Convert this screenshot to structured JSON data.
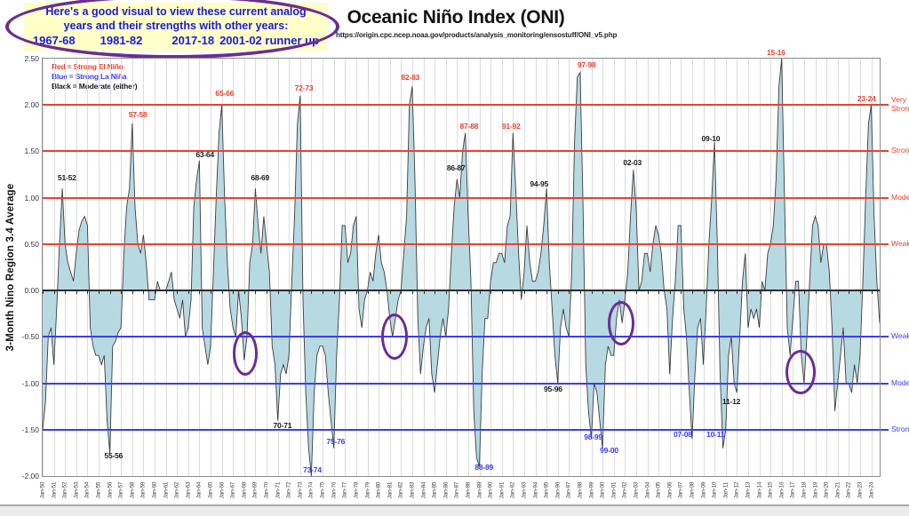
{
  "annotation_bubble": {
    "line1": "Here's a good visual to view these current analog",
    "line2": "years and their strengths with other years:",
    "years": [
      "1967-68",
      "1981-82",
      "2017-18",
      "2001-02 runner up"
    ]
  },
  "header": {
    "title": "Oceanic Niño Index (ONI)",
    "url": "https://origin.cpc.ncep.noaa.gov/products/analysis_monitoring/ensostuff/ONI_v5.php"
  },
  "legend": [
    {
      "text": "Red = Strong  El Niño",
      "color": "#e8422f"
    },
    {
      "text": "Blue = Strong  La Niña",
      "color": "#3a3df0"
    },
    {
      "text": "Black = Moderate  (either)",
      "color": "#1a1a1a"
    }
  ],
  "y_axis": {
    "title": "3-Month Nino Region 3.4 Average",
    "tick_labels": [
      "2.50",
      "2.00",
      "1.50",
      "1.00",
      "0.50",
      "0.00",
      "-0.50",
      "-1.00",
      "-1.50",
      "-2.00"
    ]
  },
  "threshold_lines": [
    {
      "value": 2.0,
      "color": "#e8422f",
      "label": "Very Strong"
    },
    {
      "value": 1.5,
      "color": "#e8422f",
      "label": "Strong"
    },
    {
      "value": 1.0,
      "color": "#e8422f",
      "label": "Moderate"
    },
    {
      "value": 0.5,
      "color": "#e8422f",
      "label": "Weak"
    },
    {
      "value": -0.5,
      "color": "#3a3df0",
      "label": "Weak"
    },
    {
      "value": -1.0,
      "color": "#3a3df0",
      "label": "Moderate"
    },
    {
      "value": -1.5,
      "color": "#3a3df0",
      "label": "Strong"
    }
  ],
  "chart_data": {
    "type": "area",
    "title": "Oceanic Niño Index (ONI)",
    "ylabel": "3-Month Nino Region 3.4 Average",
    "ylim": [
      -2.0,
      2.5
    ],
    "x_start": "Jan-1950",
    "sample_interval_months": 3,
    "fill_color": "#b7d9e2",
    "line_color": "#3d3d3d",
    "x_tick_labels": [
      "Jan-50",
      "Jan-51",
      "Jan-52",
      "Jan-53",
      "Jan-54",
      "Jan-55",
      "Jan-56",
      "Jan-57",
      "Jan-58",
      "Jan-59",
      "Jan-60",
      "Jan-61",
      "Jan-62",
      "Jan-63",
      "Jan-64",
      "Jan-65",
      "Jan-66",
      "Jan-67",
      "Jan-68",
      "Jan-69",
      "Jan-70",
      "Jan-71",
      "Jan-72",
      "Jan-73",
      "Jan-74",
      "Jan-75",
      "Jan-76",
      "Jan-77",
      "Jan-78",
      "Jan-79",
      "Jan-80",
      "Jan-81",
      "Jan-82",
      "Jan-83",
      "Jan-84",
      "Jan-85",
      "Jan-86",
      "Jan-87",
      "Jan-88",
      "Jan-89",
      "Jan-90",
      "Jan-91",
      "Jan-92",
      "Jan-93",
      "Jan-94",
      "Jan-95",
      "Jan-96",
      "Jan-97",
      "Jan-98",
      "Jan-99",
      "Jan-00",
      "Jan-01",
      "Jan-02",
      "Jan-03",
      "Jan-04",
      "Jan-05",
      "Jan-06",
      "Jan-07",
      "Jan-08",
      "Jan-09",
      "Jan-10",
      "Jan-11",
      "Jan-12",
      "Jan-13",
      "Jan-14",
      "Jan-15",
      "Jan-16",
      "Jan-17",
      "Jan-18",
      "Jan-19",
      "Jan-20",
      "Jan-21",
      "Jan-22",
      "Jan-23",
      "Jan-24"
    ],
    "values": [
      -1.5,
      -1.2,
      -0.5,
      -0.4,
      -0.8,
      -0.2,
      0.5,
      1.1,
      0.5,
      0.3,
      0.2,
      0.1,
      0.4,
      0.65,
      0.75,
      0.8,
      0.7,
      -0.4,
      -0.6,
      -0.7,
      -0.7,
      -0.8,
      -0.7,
      -1.4,
      -1.75,
      -0.6,
      -0.55,
      -0.45,
      -0.4,
      0.4,
      0.9,
      1.1,
      1.8,
      0.9,
      0.5,
      0.4,
      0.6,
      0.3,
      -0.1,
      -0.1,
      -0.1,
      0.1,
      0.0,
      0.0,
      0.0,
      0.1,
      0.2,
      -0.1,
      -0.2,
      -0.3,
      -0.1,
      -0.5,
      -0.4,
      -0.1,
      0.9,
      1.2,
      1.4,
      -0.4,
      -0.6,
      -0.8,
      -0.6,
      0.2,
      1.0,
      1.7,
      2.0,
      1.0,
      0.3,
      -0.2,
      -0.4,
      -0.5,
      0.0,
      -0.3,
      -0.75,
      -0.5,
      0.3,
      0.5,
      1.1,
      0.7,
      0.4,
      0.8,
      0.5,
      0.2,
      -0.6,
      -0.8,
      -1.4,
      -0.9,
      -0.8,
      -0.9,
      -0.7,
      0.1,
      0.8,
      1.8,
      2.1,
      -0.1,
      -1.1,
      -1.7,
      -2.0,
      -1.1,
      -0.7,
      -0.6,
      -0.6,
      -0.7,
      -1.1,
      -1.4,
      -1.7,
      -0.7,
      -0.1,
      0.7,
      0.7,
      0.3,
      0.4,
      0.7,
      0.8,
      -0.2,
      -0.4,
      -0.1,
      0.0,
      0.2,
      0.1,
      0.4,
      0.6,
      0.3,
      0.2,
      0.0,
      -0.3,
      -0.5,
      -0.3,
      -0.1,
      0.0,
      0.4,
      0.8,
      2.0,
      2.2,
      1.2,
      -0.3,
      -0.9,
      -0.6,
      -0.4,
      -0.3,
      -0.9,
      -1.1,
      -0.8,
      -0.5,
      -0.3,
      -0.5,
      -0.2,
      0.4,
      0.9,
      1.2,
      1.0,
      1.5,
      1.7,
      0.8,
      0.1,
      -1.3,
      -1.8,
      -1.9,
      -0.9,
      -0.3,
      -0.3,
      0.1,
      0.3,
      0.3,
      0.4,
      0.4,
      0.3,
      0.7,
      0.8,
      1.7,
      1.1,
      0.4,
      -0.1,
      0.2,
      0.7,
      0.3,
      0.1,
      0.1,
      0.2,
      0.4,
      0.7,
      1.1,
      0.3,
      -0.2,
      -0.7,
      -1.0,
      -0.4,
      -0.2,
      -0.4,
      -0.5,
      0.2,
      1.6,
      2.3,
      2.35,
      1.0,
      -0.8,
      -1.3,
      -1.6,
      -1.0,
      -1.1,
      -1.4,
      -1.7,
      -0.8,
      -0.6,
      -0.7,
      -0.7,
      -0.3,
      -0.1,
      -0.35,
      -0.1,
      0.2,
      0.8,
      1.3,
      0.9,
      0.0,
      0.1,
      0.4,
      0.4,
      0.2,
      0.5,
      0.7,
      0.6,
      0.4,
      0.0,
      -0.2,
      -0.9,
      -0.3,
      0.1,
      0.7,
      0.7,
      -0.2,
      -0.5,
      -1.1,
      -1.6,
      -0.9,
      -0.4,
      -0.3,
      -0.8,
      -0.2,
      0.5,
      1.0,
      1.6,
      0.5,
      -0.9,
      -1.7,
      -1.5,
      -0.7,
      -0.5,
      -1.0,
      -1.1,
      -0.5,
      0.1,
      0.4,
      -0.4,
      -0.2,
      -0.3,
      -0.2,
      -0.4,
      0.1,
      0.0,
      0.4,
      0.5,
      0.7,
      1.2,
      2.2,
      2.5,
      1.0,
      -0.4,
      -0.7,
      -0.3,
      0.1,
      0.1,
      -0.7,
      -1.0,
      -0.5,
      0.1,
      0.7,
      0.8,
      0.7,
      0.3,
      0.5,
      0.5,
      0.2,
      -0.4,
      -1.3,
      -1.0,
      -0.7,
      -0.4,
      -1.0,
      -1.0,
      -1.1,
      -0.8,
      -1.0,
      -0.7,
      0.1,
      1.0,
      1.8,
      2.0,
      0.8,
      0.1,
      -0.35
    ]
  },
  "event_labels": [
    {
      "text": "51-52",
      "type": "black",
      "m": 26,
      "v": 1.22
    },
    {
      "text": "55-56",
      "type": "black",
      "m": 76,
      "v": -1.78
    },
    {
      "text": "57-58",
      "type": "red",
      "m": 102,
      "v": 1.9
    },
    {
      "text": "63-64",
      "type": "black",
      "m": 174,
      "v": 1.47
    },
    {
      "text": "65-66",
      "type": "red",
      "m": 195,
      "v": 2.13
    },
    {
      "text": "68-69",
      "type": "black",
      "m": 233,
      "v": 1.22
    },
    {
      "text": "70-71",
      "type": "black",
      "m": 257,
      "v": -1.45
    },
    {
      "text": "72-73",
      "type": "red",
      "m": 280,
      "v": 2.18
    },
    {
      "text": "73-74",
      "type": "blue",
      "m": 289,
      "v": -1.93
    },
    {
      "text": "75-76",
      "type": "blue",
      "m": 314,
      "v": -1.63
    },
    {
      "text": "82-83",
      "type": "red",
      "m": 394,
      "v": 2.3
    },
    {
      "text": "86-87",
      "type": "black",
      "m": 443,
      "v": 1.32
    },
    {
      "text": "87-88",
      "type": "red",
      "m": 457,
      "v": 1.77
    },
    {
      "text": "88-89",
      "type": "blue",
      "m": 473,
      "v": -1.9
    },
    {
      "text": "91-92",
      "type": "red",
      "m": 502,
      "v": 1.77
    },
    {
      "text": "94-95",
      "type": "black",
      "m": 532,
      "v": 1.15
    },
    {
      "text": "95-96",
      "type": "black",
      "m": 547,
      "v": -1.06
    },
    {
      "text": "97-98",
      "type": "red",
      "m": 583,
      "v": 2.43
    },
    {
      "text": "98-99",
      "type": "blue",
      "m": 590,
      "v": -1.58
    },
    {
      "text": "99-00",
      "type": "blue",
      "m": 607,
      "v": -1.72
    },
    {
      "text": "02-03",
      "type": "black",
      "m": 632,
      "v": 1.38
    },
    {
      "text": "07-08",
      "type": "blue",
      "m": 686,
      "v": -1.55
    },
    {
      "text": "09-10",
      "type": "black",
      "m": 716,
      "v": 1.64
    },
    {
      "text": "10-11",
      "type": "blue",
      "m": 721,
      "v": -1.55
    },
    {
      "text": "11-12",
      "type": "black",
      "m": 738,
      "v": -1.2
    },
    {
      "text": "15-16",
      "type": "red",
      "m": 786,
      "v": 2.57
    },
    {
      "text": "23-24",
      "type": "red",
      "m": 883,
      "v": 2.07
    }
  ],
  "circled_dips": [
    {
      "m": 217,
      "v": -0.68,
      "rx": 11,
      "ry": 22
    },
    {
      "m": 377,
      "v": -0.5,
      "rx": 12,
      "ry": 23
    },
    {
      "m": 620,
      "v": -0.35,
      "rx": 12,
      "ry": 22
    },
    {
      "m": 812,
      "v": -0.88,
      "rx": 14,
      "ry": 22
    }
  ],
  "colors": {
    "el_nino_red": "#e8422f",
    "la_nina_blue": "#3a3df0",
    "moderate_black": "#1a1a1a",
    "annotation_purple": "#6a2d91",
    "area_fill": "#b7d9e2",
    "area_line": "#3d3d3d"
  }
}
